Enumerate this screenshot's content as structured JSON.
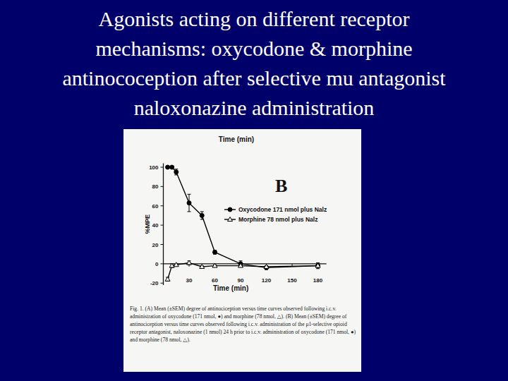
{
  "slide_title": [
    "Agonists acting on different receptor",
    "mechanisms: oxycodone & morphine",
    "antinocoception after selective mu antagonist",
    "naloxonazine administration"
  ],
  "caption": "Fig. 1. (A) Mean (±SEM) degree of antinociception versus time curves observed following i.c.v. administration of oxycodone (171 nmol, ●) and morphine (78 nmol, △). (B) Mean (±SEM) degree of antinociception versus time curves observed following i.c.v. administration of the μ1-selective opioid receptor antagonist, naloxonazine (1 nmol) 24 h prior to i.c.v. administration of oxycodone (171 nmol, ●) and morphine (78 nmol, △).",
  "chart_data": {
    "type": "line",
    "x_label": "Time (min)",
    "x2_label": "Time (min)",
    "y_label": "%MPE",
    "annotations": [
      "B"
    ],
    "x": [
      5,
      10,
      15,
      30,
      45,
      60,
      90,
      120,
      180
    ],
    "series": [
      {
        "name": "Oxycodone 171 nmol plus Nalz",
        "color": "#000000",
        "marker": "circle",
        "line_style": "solid",
        "values": [
          100,
          100,
          95,
          63,
          50,
          12,
          0,
          -4,
          -2
        ],
        "errors": [
          0,
          0,
          3,
          9,
          4,
          2,
          3,
          2,
          3
        ]
      },
      {
        "name": "Morphine 78 nmol plus Nalz",
        "color": "#000000",
        "marker": "triangle-open",
        "line_style": "solid",
        "values": [
          -16,
          -2,
          -1,
          1,
          -3,
          -2,
          -2,
          -3,
          -2
        ],
        "errors": [
          2,
          2,
          1,
          2,
          1,
          1,
          1,
          1,
          1
        ]
      }
    ],
    "xlim": [
      0,
      190
    ],
    "xticks": [
      30,
      60,
      90,
      120,
      150,
      180
    ],
    "ylim": [
      -22,
      104
    ],
    "yticks": [
      -20,
      0,
      20,
      40,
      60,
      80,
      100
    ],
    "legend": "upper right",
    "grid": false
  }
}
